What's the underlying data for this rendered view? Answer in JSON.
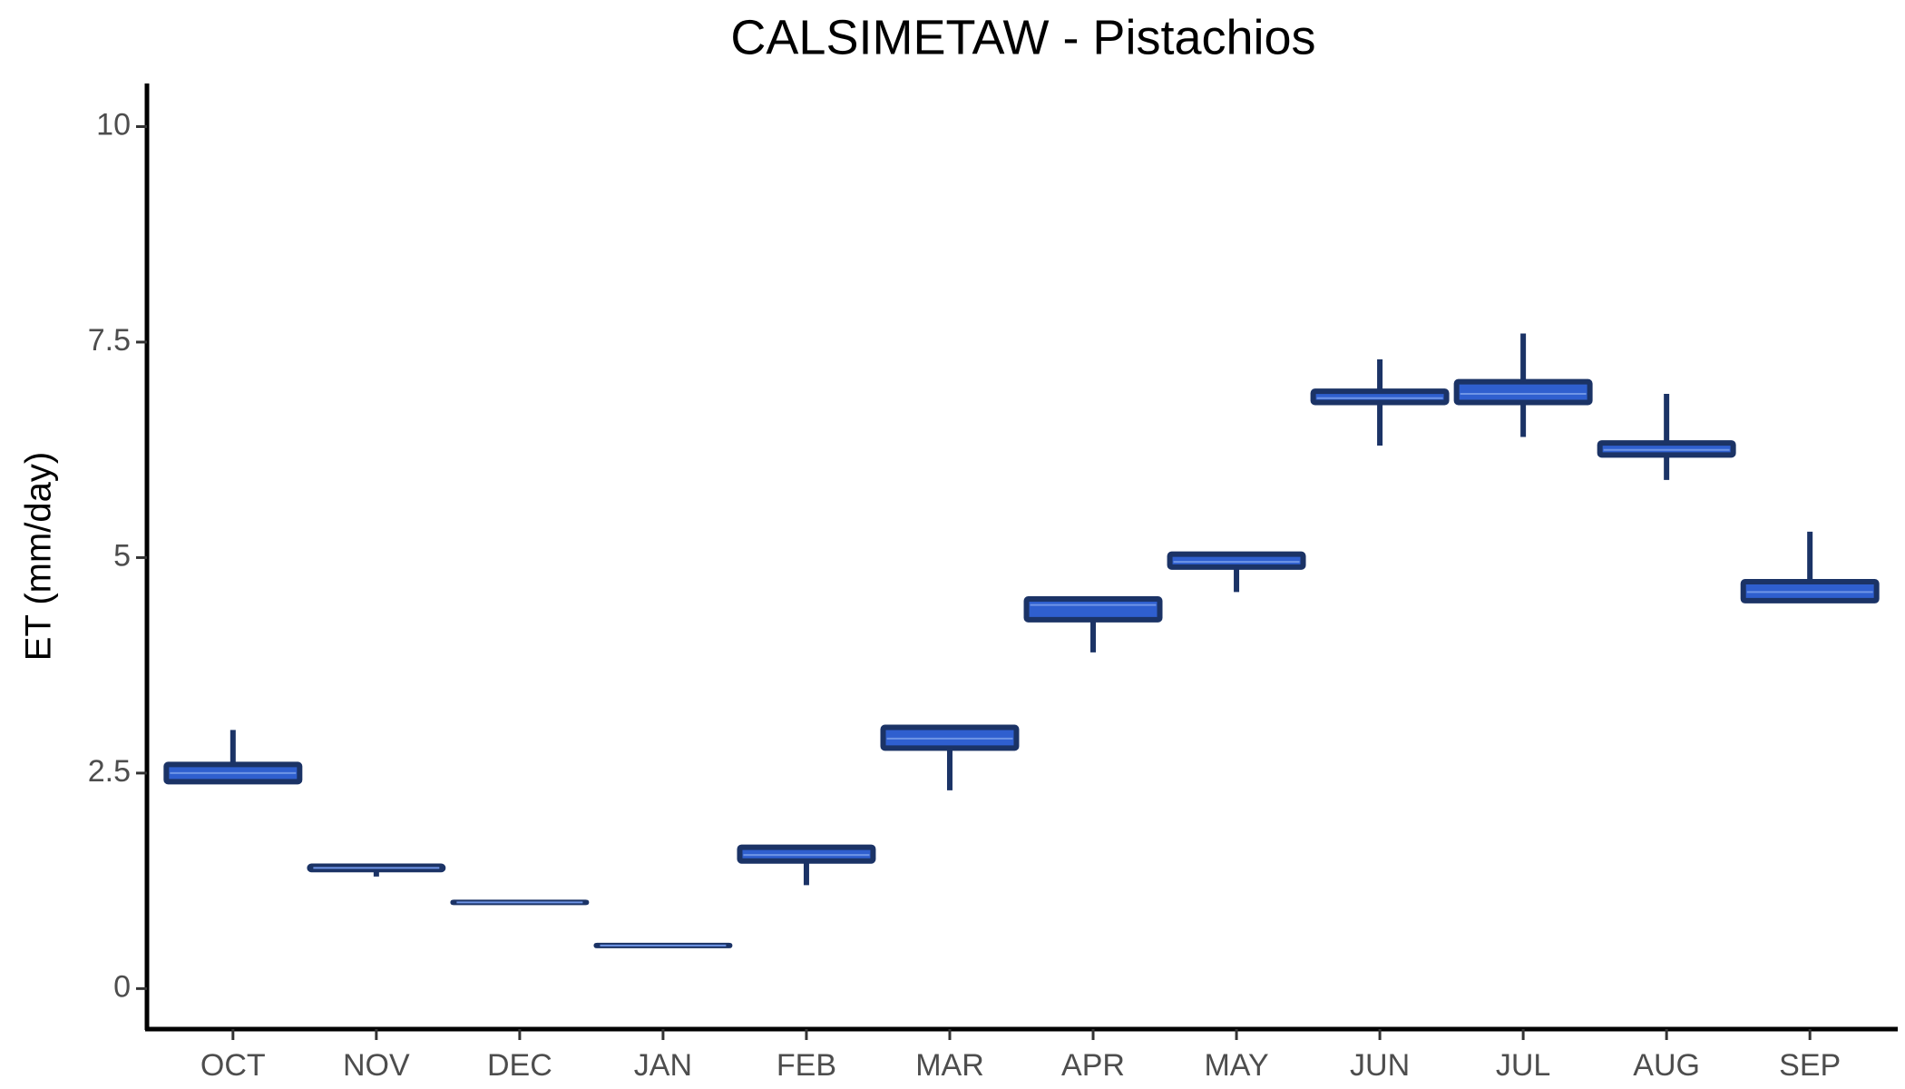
{
  "chart_data": {
    "type": "box",
    "title": "CALSIMETAW - Pistachios",
    "y_label": "ET (mm/day)",
    "categories": [
      "OCT",
      "NOV",
      "DEC",
      "JAN",
      "FEB",
      "MAR",
      "APR",
      "MAY",
      "JUN",
      "JUL",
      "AUG",
      "SEP"
    ],
    "min": [
      2.4,
      1.3,
      1.0,
      0.5,
      1.2,
      2.3,
      3.9,
      4.6,
      6.3,
      6.4,
      5.9,
      4.5
    ],
    "q1": [
      2.4,
      1.38,
      1.0,
      0.5,
      1.48,
      2.79,
      4.28,
      4.89,
      6.8,
      6.8,
      6.19,
      4.5
    ],
    "median": [
      2.5,
      1.4,
      1.0,
      0.5,
      1.55,
      2.9,
      4.45,
      4.95,
      6.85,
      6.9,
      6.25,
      4.6
    ],
    "q3": [
      2.6,
      1.42,
      1.0,
      0.5,
      1.64,
      3.03,
      4.52,
      5.04,
      6.93,
      7.04,
      6.33,
      4.72
    ],
    "max": [
      3.0,
      1.42,
      1.0,
      0.5,
      1.64,
      3.03,
      4.52,
      5.04,
      7.3,
      7.6,
      6.9,
      5.3
    ],
    "color": "#2f5fcf",
    "edge_color": "#1b3366",
    "median_color": "#6f95e6",
    "ylim": [
      -0.47,
      10.5
    ],
    "yticks": [
      0,
      2.5,
      5,
      7.5,
      10
    ],
    "grid": false
  }
}
